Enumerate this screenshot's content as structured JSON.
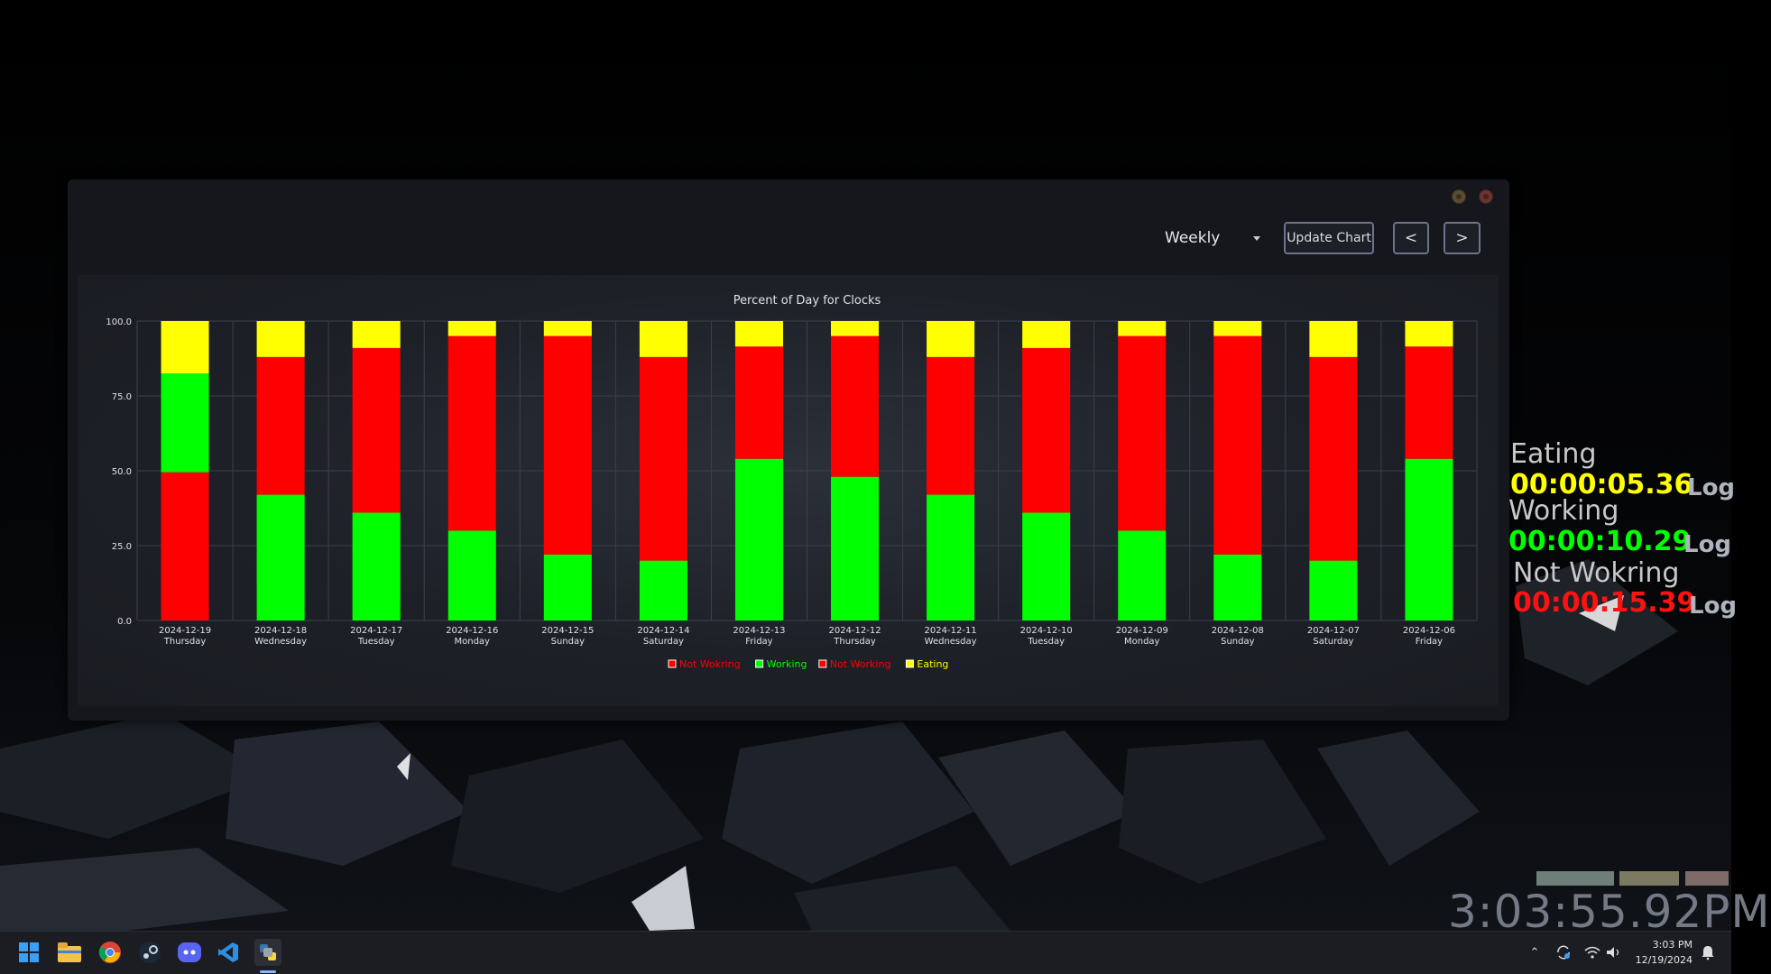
{
  "window": {
    "range_selected": "Weekly",
    "update_label": "Update Chart",
    "prev_label": "<",
    "next_label": ">"
  },
  "chart_data": {
    "type": "bar",
    "stacked": true,
    "title": "Percent of Day for Clocks",
    "ylim": [
      0,
      100
    ],
    "yticks": [
      "0.0",
      "25.0",
      "50.0",
      "75.0",
      "100.0"
    ],
    "grid": true,
    "legend_position": "bottom",
    "categories": [
      {
        "date": "2024-12-19",
        "day": "Thursday"
      },
      {
        "date": "2024-12-18",
        "day": "Wednesday"
      },
      {
        "date": "2024-12-17",
        "day": "Tuesday"
      },
      {
        "date": "2024-12-16",
        "day": "Monday"
      },
      {
        "date": "2024-12-15",
        "day": "Sunday"
      },
      {
        "date": "2024-12-14",
        "day": "Saturday"
      },
      {
        "date": "2024-12-13",
        "day": "Friday"
      },
      {
        "date": "2024-12-12",
        "day": "Thursday"
      },
      {
        "date": "2024-12-11",
        "day": "Wednesday"
      },
      {
        "date": "2024-12-10",
        "day": "Tuesday"
      },
      {
        "date": "2024-12-09",
        "day": "Monday"
      },
      {
        "date": "2024-12-08",
        "day": "Sunday"
      },
      {
        "date": "2024-12-07",
        "day": "Saturday"
      },
      {
        "date": "2024-12-06",
        "day": "Friday"
      }
    ],
    "series": [
      {
        "name": "Not Wokring",
        "color": "#ff0000",
        "values": [
          49.5,
          0,
          0,
          0,
          0,
          0,
          0,
          0,
          0,
          0,
          0,
          0,
          0,
          0
        ]
      },
      {
        "name": "Working",
        "color": "#00ff00",
        "values": [
          33,
          42,
          36,
          30,
          22,
          20,
          54,
          48,
          42,
          36,
          30,
          22,
          20,
          54
        ]
      },
      {
        "name": "Not Working",
        "color": "#ff0000",
        "values": [
          0,
          46,
          55,
          65,
          73,
          68,
          37.5,
          47,
          46,
          55,
          65,
          73,
          68,
          37.5
        ]
      },
      {
        "name": "Eating",
        "color": "#ffff00",
        "values": [
          17.5,
          12,
          9,
          5,
          5,
          12,
          8.5,
          5,
          12,
          9,
          5,
          5,
          12,
          8.5
        ]
      }
    ]
  },
  "clocks": [
    {
      "label": "Eating",
      "time": "00:00:05.36",
      "color": "#ffff00",
      "log": "Log"
    },
    {
      "label": "Working",
      "time": "00:00:10.29",
      "color": "#00ff00",
      "log": "Log"
    },
    {
      "label": "Not Wokring",
      "time": "00:00:15.39",
      "color": "#ff1111",
      "log": "Log"
    }
  ],
  "big_clock": "3:03:55.92PM",
  "taskbar": {
    "icons": [
      "windows-start-icon",
      "file-explorer-icon",
      "chrome-icon",
      "steam-icon",
      "discord-icon",
      "vscode-icon",
      "python-app-icon"
    ],
    "time": "3:03 PM",
    "date": "12/19/2024"
  }
}
